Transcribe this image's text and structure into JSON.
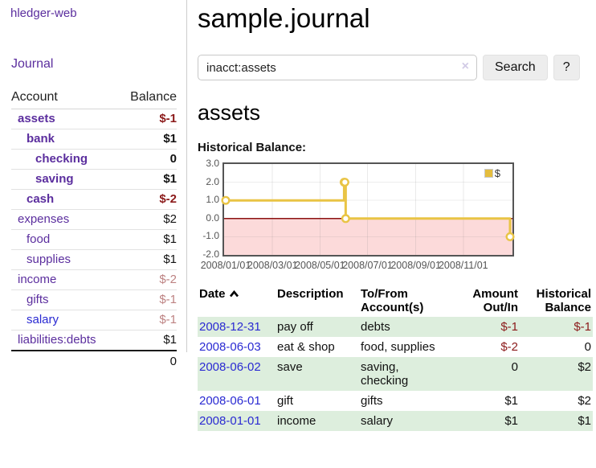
{
  "app": {
    "brand": "hledger-web",
    "nav_journal": "Journal"
  },
  "sidebar": {
    "accounts_header": {
      "account": "Account",
      "balance": "Balance"
    },
    "accounts": [
      {
        "name": "assets",
        "balance": "$-1",
        "depth": 1,
        "bold": true,
        "balance_class": "neg"
      },
      {
        "name": "bank",
        "balance": "$1",
        "depth": 2,
        "bold": true,
        "balance_class": "pos"
      },
      {
        "name": "checking",
        "balance": "0",
        "depth": 3,
        "bold": true,
        "balance_class": "pos"
      },
      {
        "name": "saving",
        "balance": "$1",
        "depth": 3,
        "bold": true,
        "balance_class": "pos"
      },
      {
        "name": "cash",
        "balance": "$-2",
        "depth": 2,
        "bold": true,
        "balance_class": "neg"
      },
      {
        "name": "expenses",
        "balance": "$2",
        "depth": 1,
        "bold": false,
        "balance_class": "pos"
      },
      {
        "name": "food",
        "balance": "$1",
        "depth": 2,
        "bold": false,
        "balance_class": "pos"
      },
      {
        "name": "supplies",
        "balance": "$1",
        "depth": 2,
        "bold": false,
        "balance_class": "pos"
      },
      {
        "name": "income",
        "balance": "$-2",
        "depth": 1,
        "bold": false,
        "balance_class": "neg-muted"
      },
      {
        "name": "gifts",
        "balance": "$-1",
        "depth": 2,
        "bold": false,
        "balance_class": "neg-muted"
      },
      {
        "name": "salary",
        "balance": "$-1",
        "depth": 2,
        "bold": false,
        "balance_class": "neg-muted",
        "link_style": "unvisited"
      },
      {
        "name": "liabilities:debts",
        "balance": "$1",
        "depth": 1,
        "bold": false,
        "balance_class": "pos"
      }
    ],
    "total": "0"
  },
  "header": {
    "title": "sample.journal"
  },
  "search": {
    "value": "inacct:assets",
    "clear_icon": "×",
    "button_label": "Search",
    "help_label": "?"
  },
  "account_page": {
    "title": "assets",
    "chart_label": "Historical Balance:"
  },
  "chart_data": {
    "type": "line",
    "title": "Historical Balance",
    "step": true,
    "series": [
      {
        "name": "$",
        "color": "#e9c445",
        "points": [
          [
            "2008-01-01",
            1
          ],
          [
            "2008-06-01",
            2
          ],
          [
            "2008-06-02",
            2
          ],
          [
            "2008-06-03",
            0
          ],
          [
            "2008-12-31",
            -1
          ]
        ]
      }
    ],
    "ylim": [
      -2,
      3
    ],
    "yticks": [
      "3.0",
      "2.0",
      "1.0",
      "0.0",
      "-1.0",
      "-2.0"
    ],
    "xticks": [
      "2008/01/01",
      "2008/03/01",
      "2008/05/01",
      "2008/07/01",
      "2008/09/01",
      "2008/11/01"
    ],
    "x_range": [
      "2008-01-01",
      "2009-01-05"
    ],
    "grid": true,
    "negative_region_fill": "#fcdada",
    "zero_line_color": "#8b1111",
    "legend": {
      "label": "$",
      "position": "top-right",
      "swatch_color": "#e4bd3e"
    }
  },
  "register": {
    "columns": {
      "date": "Date",
      "description": "Description",
      "accounts": "To/From Account(s)",
      "amount": "Amount Out/In",
      "balance": "Historical Balance"
    },
    "rows": [
      {
        "date": "2008-12-31",
        "description": "pay off",
        "accounts": "debts",
        "amount": "$-1",
        "amount_class": "neg",
        "balance": "$-1",
        "balance_class": "neg"
      },
      {
        "date": "2008-06-03",
        "description": "eat & shop",
        "accounts": "food, supplies",
        "amount": "$-2",
        "amount_class": "neg",
        "balance": "0",
        "balance_class": "pos"
      },
      {
        "date": "2008-06-02",
        "description": "save",
        "accounts": "saving, checking",
        "amount": "0",
        "amount_class": "pos",
        "balance": "$2",
        "balance_class": "pos"
      },
      {
        "date": "2008-06-01",
        "description": "gift",
        "accounts": "gifts",
        "amount": "$1",
        "amount_class": "pos",
        "balance": "$2",
        "balance_class": "pos"
      },
      {
        "date": "2008-01-01",
        "description": "income",
        "accounts": "salary",
        "amount": "$1",
        "amount_class": "pos",
        "balance": "$1",
        "balance_class": "pos"
      }
    ]
  }
}
